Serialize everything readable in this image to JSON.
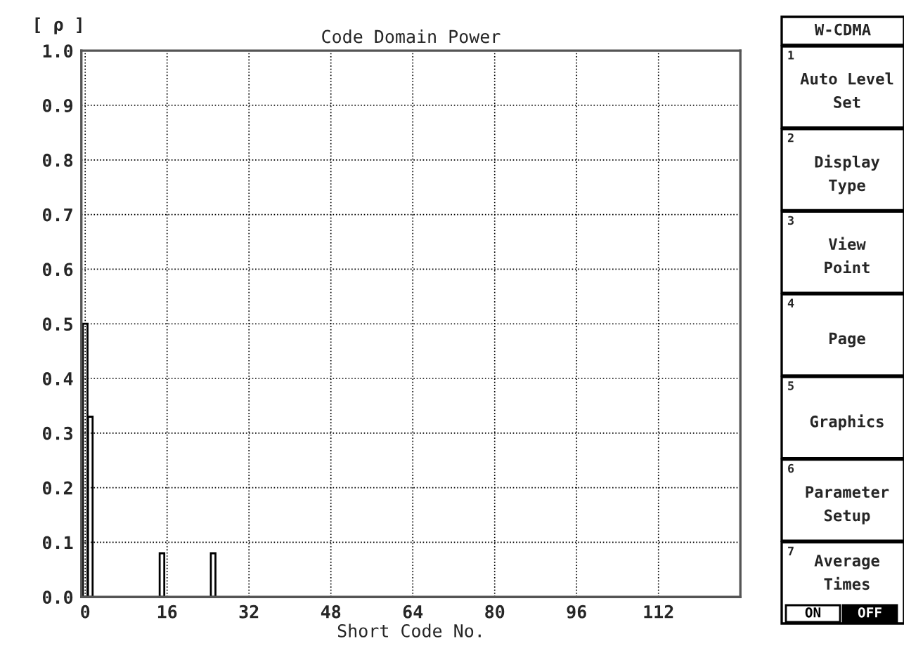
{
  "chart_data": {
    "type": "bar",
    "title": "Code Domain Power",
    "xlabel": "Short Code No.",
    "ylabel": "[ ρ ]",
    "x": [
      0,
      1,
      15,
      25
    ],
    "series": [
      {
        "color": "#000000",
        "values": [
          0.5,
          0.33,
          0.08,
          0.08
        ]
      }
    ],
    "xlim": [
      -0.75,
      128
    ],
    "xticks": [
      0,
      16,
      32,
      48,
      64,
      80,
      96,
      112
    ],
    "ylim": [
      0,
      1.0
    ],
    "yticks": [
      {
        "value": 0,
        "label": "0.0"
      },
      0.1,
      0.2,
      0.3,
      0.4,
      0.5,
      0.6,
      0.7,
      0.8,
      0.9,
      {
        "value": 1,
        "label": "1.0"
      }
    ],
    "grid": true,
    "line_style": "dotted",
    "annotations": [
      "W-CDMA",
      "1",
      "Auto Level\nSet",
      "2",
      "Display\nType",
      "3",
      "View\nPoint",
      "4",
      "Page",
      "5",
      "Graphics",
      "6",
      "Parameter\nSetup",
      "7",
      "Average\nTimes",
      "ON",
      "OFF"
    ]
  }
}
